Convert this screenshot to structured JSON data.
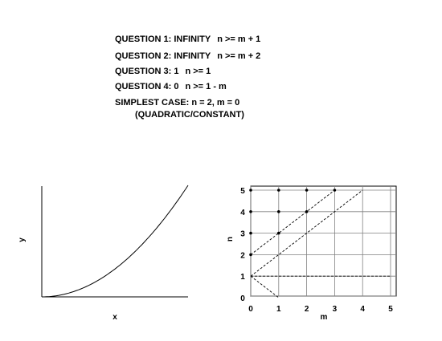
{
  "notes": {
    "q1": {
      "label": "QUESTION 1: INFINITY",
      "cond": "n >= m + 1"
    },
    "q2": {
      "label": "QUESTION 2: INFINITY",
      "cond": "n >= m + 2"
    },
    "q3": {
      "label": "QUESTION 3: 1",
      "cond": "n >= 1"
    },
    "q4": {
      "label": "QUESTION 4: 0",
      "cond": "n >= 1 - m"
    },
    "simplest": "SIMPLEST CASE: n = 2, m = 0",
    "simplest_sub": "(QUADRATIC/CONSTANT)"
  },
  "chart_data": [
    {
      "type": "line",
      "xlabel": "x",
      "ylabel": "y",
      "curve": "parabola y = x^2, x from 0",
      "axes": "bottom and left lines only, no ticks"
    },
    {
      "type": "scatter",
      "xlabel": "m",
      "ylabel": "n",
      "xlim": [
        0,
        5
      ],
      "ylim": [
        0,
        5
      ],
      "xticks": [
        "0",
        "1",
        "2",
        "3",
        "4",
        "5"
      ],
      "yticks": [
        "0",
        "1",
        "2",
        "3",
        "4",
        "5"
      ],
      "grid": true,
      "points": [
        [
          0,
          2
        ],
        [
          0,
          3
        ],
        [
          0,
          4
        ],
        [
          0,
          5
        ],
        [
          1,
          3
        ],
        [
          1,
          4
        ],
        [
          1,
          5
        ],
        [
          2,
          4
        ],
        [
          2,
          5
        ],
        [
          3,
          5
        ]
      ],
      "dashed_lines": [
        {
          "from": [
            0,
            1
          ],
          "to": [
            4,
            5
          ]
        },
        {
          "from": [
            0,
            2
          ],
          "to": [
            3,
            5
          ]
        },
        {
          "from": [
            0,
            1
          ],
          "to": [
            1,
            0
          ]
        },
        {
          "from": [
            0,
            1
          ],
          "to": [
            5,
            1
          ]
        }
      ]
    }
  ]
}
